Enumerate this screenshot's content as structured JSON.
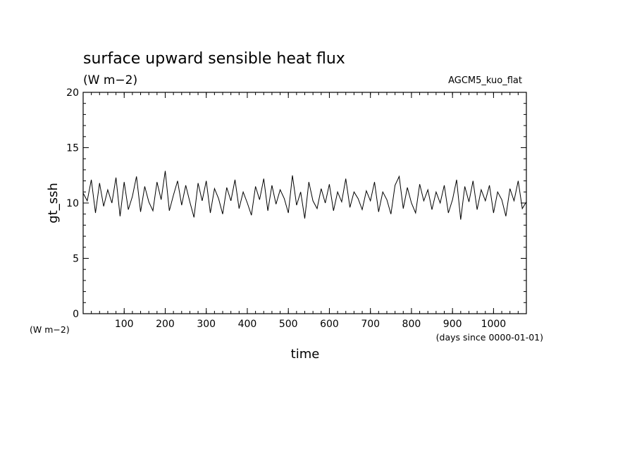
{
  "chart_data": {
    "type": "line",
    "title": "surface upward sensible heat flux",
    "subtitle": "(W m−2)",
    "experiment": "AGCM5_kuo_flat",
    "xlabel": "time",
    "x_units": "(days since 0000-01-01)",
    "ylabel": "gt_ssh",
    "y_units": "(W m−2)",
    "xlim": [
      0,
      1080
    ],
    "ylim": [
      0,
      20
    ],
    "x_ticks": [
      100,
      200,
      300,
      400,
      500,
      600,
      700,
      800,
      900,
      1000
    ],
    "x_tick_labels": [
      "100",
      "200",
      "300",
      "400",
      "500",
      "600",
      "700",
      "800",
      "900",
      "1000"
    ],
    "y_ticks": [
      0,
      5,
      10,
      15,
      20
    ],
    "y_tick_labels": [
      "0",
      "5",
      "10",
      "15",
      "20"
    ],
    "grid": false,
    "line_color": "#000000",
    "series": [
      {
        "x": [
          0,
          10,
          20,
          30,
          40,
          50,
          60,
          70,
          80,
          90,
          100,
          110,
          120,
          130,
          140,
          150,
          160,
          170,
          180,
          190,
          200,
          210,
          220,
          230,
          240,
          250,
          260,
          270,
          280,
          290,
          300,
          310,
          320,
          330,
          340,
          350,
          360,
          370,
          380,
          390,
          400,
          410,
          420,
          430,
          440,
          450,
          460,
          470,
          480,
          490,
          500,
          510,
          520,
          530,
          540,
          550,
          560,
          570,
          580,
          590,
          600,
          610,
          620,
          630,
          640,
          650,
          660,
          670,
          680,
          690,
          700,
          710,
          720,
          730,
          740,
          750,
          760,
          770,
          780,
          790,
          800,
          810,
          820,
          830,
          840,
          850,
          860,
          870,
          880,
          890,
          900,
          910,
          920,
          930,
          940,
          950,
          960,
          970,
          980,
          990,
          1000,
          1010,
          1020,
          1030,
          1040,
          1050,
          1060,
          1070,
          1080
        ],
        "values": [
          10.9,
          10.2,
          12.1,
          9.1,
          11.8,
          9.7,
          11.2,
          10.0,
          12.3,
          8.8,
          11.9,
          9.4,
          10.6,
          12.4,
          9.2,
          11.5,
          10.1,
          9.3,
          11.9,
          10.3,
          12.9,
          9.3,
          10.7,
          12.0,
          9.8,
          11.6,
          10.1,
          8.7,
          11.8,
          10.2,
          12.0,
          9.1,
          11.3,
          10.4,
          9.0,
          11.4,
          10.2,
          12.1,
          9.5,
          11.0,
          10.0,
          8.9,
          11.5,
          10.3,
          12.2,
          9.3,
          11.6,
          9.9,
          11.2,
          10.4,
          9.1,
          12.5,
          9.8,
          11.0,
          8.6,
          11.9,
          10.2,
          9.5,
          11.3,
          10.0,
          11.7,
          9.3,
          11.0,
          10.1,
          12.2,
          9.6,
          11.0,
          10.4,
          9.4,
          11.1,
          10.2,
          11.9,
          9.2,
          11.0,
          10.3,
          9.0,
          11.6,
          12.4,
          9.5,
          11.4,
          10.0,
          9.1,
          11.7,
          10.2,
          11.2,
          9.4,
          11.0,
          10.0,
          11.6,
          9.1,
          10.3,
          12.1,
          8.5,
          11.5,
          10.1,
          12.0,
          9.4,
          11.2,
          10.2,
          11.6,
          9.1,
          11.0,
          10.3,
          8.8,
          11.3,
          10.2,
          12.0,
          9.5,
          10.1
        ]
      }
    ]
  }
}
